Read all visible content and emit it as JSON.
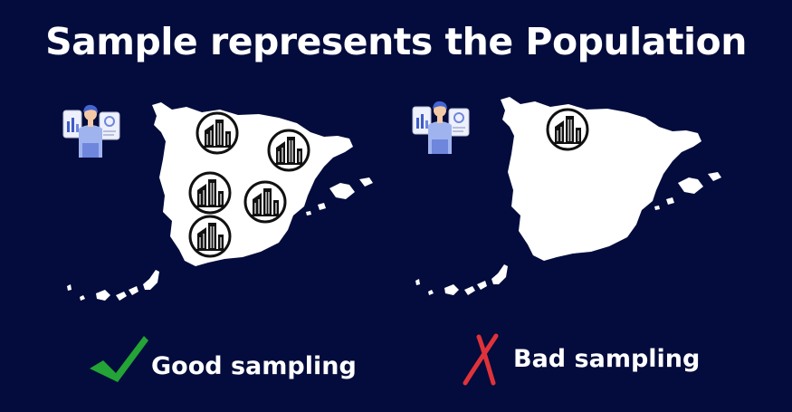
{
  "title": "Sample represents the Population",
  "colors": {
    "background": "#030c3c",
    "land": "#ffffff",
    "good": "#24a336",
    "bad": "#e0323a"
  },
  "panels": [
    {
      "caption": "Good sampling",
      "status_icon": "check-icon",
      "sample_icons": "building-icon",
      "sample_count": 5
    },
    {
      "caption": "Bad sampling",
      "status_icon": "cross-icon",
      "sample_icons": "building-icon",
      "sample_count": 1
    }
  ],
  "person_icon": "analyst-person-icon"
}
